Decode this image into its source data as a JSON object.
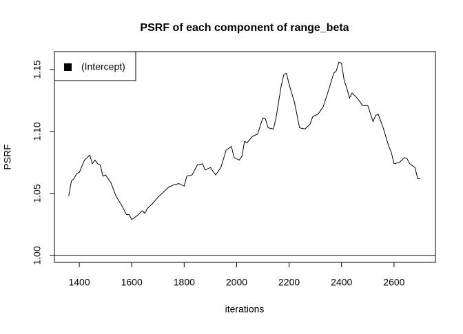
{
  "chart_data": {
    "type": "line",
    "title": "PSRF of each component of range_beta",
    "xlabel": "iterations",
    "ylabel": "PSRF",
    "x": [
      1360,
      1370,
      1380,
      1390,
      1400,
      1420,
      1440,
      1450,
      1460,
      1470,
      1480,
      1490,
      1500,
      1520,
      1540,
      1560,
      1580,
      1590,
      1600,
      1620,
      1640,
      1650,
      1660,
      1680,
      1700,
      1720,
      1740,
      1760,
      1780,
      1800,
      1810,
      1830,
      1850,
      1870,
      1880,
      1900,
      1920,
      1940,
      1960,
      1980,
      1990,
      2010,
      2020,
      2030,
      2040,
      2060,
      2080,
      2100,
      2110,
      2120,
      2140,
      2150,
      2160,
      2170,
      2180,
      2190,
      2200,
      2220,
      2240,
      2260,
      2280,
      2290,
      2310,
      2330,
      2350,
      2360,
      2370,
      2380,
      2390,
      2400,
      2410,
      2420,
      2430,
      2440,
      2460,
      2480,
      2500,
      2520,
      2530,
      2540,
      2560,
      2580,
      2590,
      2600,
      2620,
      2640,
      2650,
      2660,
      2680,
      2690,
      2700
    ],
    "series": [
      {
        "name": "(Intercept)",
        "color": "#000000",
        "values": [
          1.048,
          1.06,
          1.062,
          1.066,
          1.067,
          1.077,
          1.081,
          1.074,
          1.077,
          1.074,
          1.073,
          1.064,
          1.065,
          1.059,
          1.048,
          1.041,
          1.033,
          1.033,
          1.029,
          1.032,
          1.036,
          1.034,
          1.038,
          1.042,
          1.047,
          1.051,
          1.055,
          1.057,
          1.058,
          1.056,
          1.064,
          1.065,
          1.073,
          1.074,
          1.069,
          1.071,
          1.065,
          1.071,
          1.085,
          1.088,
          1.079,
          1.077,
          1.08,
          1.092,
          1.091,
          1.096,
          1.098,
          1.111,
          1.11,
          1.103,
          1.102,
          1.111,
          1.124,
          1.137,
          1.146,
          1.147,
          1.138,
          1.124,
          1.103,
          1.102,
          1.106,
          1.112,
          1.114,
          1.12,
          1.133,
          1.14,
          1.147,
          1.149,
          1.156,
          1.155,
          1.141,
          1.135,
          1.127,
          1.131,
          1.127,
          1.121,
          1.121,
          1.108,
          1.113,
          1.114,
          1.102,
          1.088,
          1.083,
          1.074,
          1.075,
          1.079,
          1.078,
          1.074,
          1.071,
          1.062,
          1.062
        ]
      }
    ],
    "hline": 1,
    "xlim": [
      1305.3,
      2757.9
    ],
    "ylim": [
      0.99444,
      1.16444
    ],
    "xticks": [
      1400,
      1600,
      1800,
      2000,
      2200,
      2400,
      2600
    ],
    "yticks": [
      {
        "value": 1,
        "label": "1.00"
      },
      {
        "value": 1.05,
        "label": "1.05"
      },
      {
        "value": 1.1,
        "label": "1.10"
      },
      {
        "value": 1.15,
        "label": "1.15"
      }
    ],
    "legend": "top-left"
  }
}
